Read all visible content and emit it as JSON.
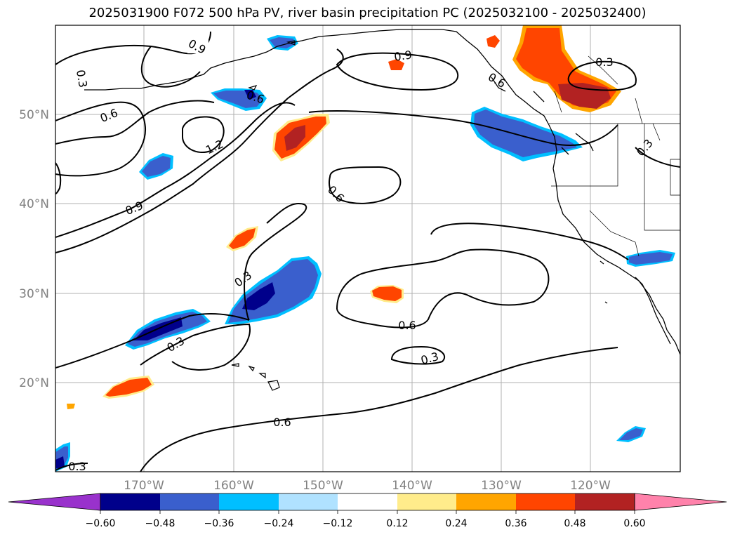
{
  "title": "2025031900 F072 500 hPa PV, river basin precipitation PC (2025032100 - 2025032400)",
  "lat_labels": [
    "20°N",
    "30°N",
    "40°N",
    "50°N"
  ],
  "lon_labels": [
    "170°W",
    "160°W",
    "150°W",
    "140°W",
    "130°W",
    "120°W"
  ],
  "contour_labels": [
    "0.9",
    "0.3",
    "0.6",
    "0.6",
    "1.2",
    "0.9",
    "0.6",
    "0.9",
    "0.6",
    "0.3",
    "0.3",
    "0.3",
    "0.3",
    "0.6",
    "0.3",
    "0.6",
    "0.3"
  ],
  "colorbar": {
    "colors": [
      "#9932cc",
      "#00008b",
      "#3a5fcd",
      "#00bfff",
      "#b0e2ff",
      "#ffffff",
      "#ffec8b",
      "#ffa500",
      "#ff4500",
      "#b22222",
      "#ff82ab"
    ],
    "tick_labels": [
      "−0.60",
      "−0.48",
      "−0.36",
      "−0.24",
      "−0.12",
      "0.12",
      "0.24",
      "0.36",
      "0.48",
      "0.60"
    ],
    "extend": "both"
  },
  "shading_colors": {
    "neg_strong": "#00008b",
    "neg_mid": "#3a5fcd",
    "neg_light": "#00bfff",
    "pos_light": "#ffec8b",
    "pos_mid": "#ffa500",
    "pos_strong": "#ff4500",
    "pos_max": "#b22222"
  }
}
